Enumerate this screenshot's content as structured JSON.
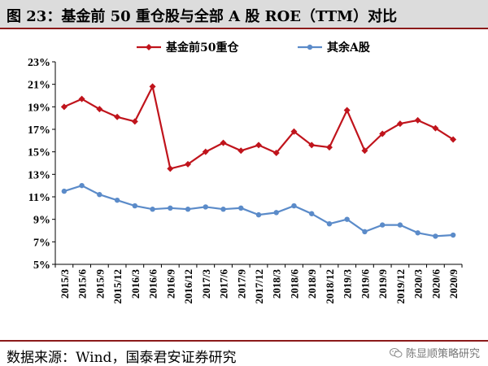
{
  "title": "图 23：基金前 50 重仓股与全部 A 股 ROE（TTM）对比",
  "footer": {
    "source": "数据来源：Wind，国泰君安证券研究",
    "watermark": "陈显顺策略研究",
    "watermark_icon": "wechat-icon"
  },
  "colors": {
    "series_fund": "#c0141c",
    "series_all": "#5b8bc9",
    "title_bg": "#dcdcdc",
    "accent": "#8b1a1a"
  },
  "chart_data": {
    "type": "line",
    "title": "",
    "xlabel": "",
    "ylabel": "",
    "categories": [
      "2015/3",
      "2015/6",
      "2015/9",
      "2015/12",
      "2016/3",
      "2016/6",
      "2016/9",
      "2016/12",
      "2017/3",
      "2017/6",
      "2017/9",
      "2017/12",
      "2018/3",
      "2018/6",
      "2018/9",
      "2018/12",
      "2019/3",
      "2019/6",
      "2019/9",
      "2019/12",
      "2020/3",
      "2020/6",
      "2020/9"
    ],
    "ylim": [
      5,
      23
    ],
    "yticks": [
      "5%",
      "7%",
      "9%",
      "11%",
      "13%",
      "15%",
      "17%",
      "19%",
      "21%",
      "23%"
    ],
    "ytick_values": [
      5,
      7,
      9,
      11,
      13,
      15,
      17,
      19,
      21,
      23
    ],
    "legend_position": "top",
    "grid": false,
    "series": [
      {
        "name": "基金前50重仓",
        "color": "#c0141c",
        "marker": "diamond",
        "values": [
          19.0,
          19.7,
          18.8,
          18.1,
          17.7,
          20.8,
          13.5,
          13.9,
          15.0,
          15.8,
          15.1,
          15.6,
          14.9,
          16.8,
          15.6,
          15.4,
          18.7,
          15.1,
          16.6,
          17.5,
          17.8,
          17.1,
          16.1
        ]
      },
      {
        "name": "其余A股",
        "color": "#5b8bc9",
        "marker": "circle",
        "values": [
          11.5,
          12.0,
          11.2,
          10.7,
          10.2,
          9.9,
          10.0,
          9.9,
          10.1,
          9.9,
          10.0,
          9.4,
          9.6,
          10.2,
          9.5,
          8.6,
          9.0,
          7.9,
          8.5,
          8.5,
          7.8,
          7.5,
          7.6
        ]
      }
    ]
  }
}
